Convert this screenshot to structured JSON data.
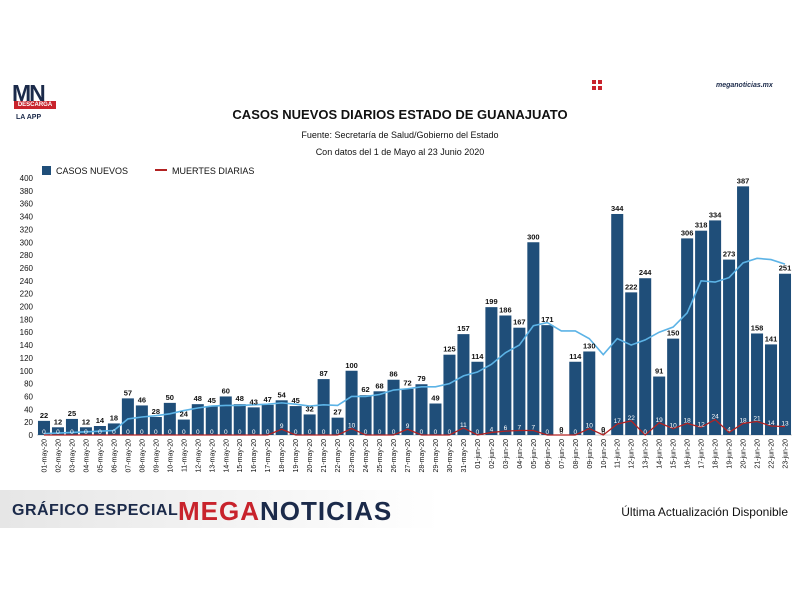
{
  "brand": {
    "logo_text": "MN",
    "logo_badge": "DESCARGA",
    "logo_sub": "LA APP",
    "site": "meganoticias.mx"
  },
  "footer": {
    "left_label": "GRÁFICO ESPECIAL",
    "brand_a": "MEGA",
    "brand_b": "NOTICIAS",
    "right_label": "Última Actualización Disponible"
  },
  "colors": {
    "bars": "#1f4e79",
    "deaths": "#b22222",
    "trend": "#5cb3e6",
    "label_light": "#ffffff",
    "label_dark": "#111111"
  },
  "chart_data": {
    "type": "bar",
    "title": "CASOS NUEVOS DIARIOS ESTADO DE GUANAJUATO",
    "subtitle": "Fuente: Secretaría de Salud/Gobierno del Estado",
    "subtitle2": "Con datos del 1 de Mayo al 23 Junio 2020",
    "ylim": [
      0,
      400
    ],
    "yticks": [
      0,
      20,
      40,
      60,
      80,
      100,
      120,
      140,
      160,
      180,
      200,
      220,
      240,
      260,
      280,
      300,
      320,
      340,
      360,
      380,
      400
    ],
    "legend": [
      "CASOS NUEVOS",
      "MUERTES DIARIAS"
    ],
    "legend_position": "top-left",
    "grid": false,
    "categories": [
      "01-may-20",
      "02-may-20",
      "03-may-20",
      "04-may-20",
      "05-may-20",
      "06-may-20",
      "07-may-20",
      "08-may-20",
      "09-may-20",
      "10-may-20",
      "11-may-20",
      "12-may-20",
      "13-may-20",
      "14-may-20",
      "15-may-20",
      "16-may-20",
      "17-may-20",
      "18-may-20",
      "19-may-20",
      "20-may-20",
      "21-may-20",
      "22-may-20",
      "23-may-20",
      "24-may-20",
      "25-may-20",
      "26-may-20",
      "27-may-20",
      "28-may-20",
      "29-may-20",
      "30-may-20",
      "31-may-20",
      "01-jun-20",
      "02-jun-20",
      "03-jun-20",
      "04-jun-20",
      "05-jun-20",
      "06-jun-20",
      "07-jun-20",
      "08-jun-20",
      "09-jun-20",
      "10-jun-20",
      "11-jun-20",
      "12-jun-20",
      "13-jun-20",
      "14-jun-20",
      "15-jun-20",
      "16-jun-20",
      "17-jun-20",
      "18-jun-20",
      "19-jun-20",
      "20-jun-20",
      "21-jun-20",
      "22-jun-20",
      "23-jun-20"
    ],
    "series": [
      {
        "name": "CASOS NUEVOS",
        "values": [
          22,
          12,
          25,
          12,
          14,
          18,
          57,
          46,
          28,
          50,
          24,
          48,
          45,
          60,
          48,
          43,
          47,
          54,
          45,
          32,
          87,
          27,
          100,
          62,
          68,
          86,
          72,
          79,
          49,
          125,
          157,
          114,
          199,
          186,
          167,
          300,
          171,
          0,
          114,
          130,
          0,
          344,
          222,
          244,
          91,
          150,
          306,
          318,
          334,
          273,
          387,
          158,
          141,
          251
        ]
      },
      {
        "name": "MUERTES DIARIAS",
        "values": [
          0,
          0,
          0,
          0,
          0,
          0,
          0,
          0,
          0,
          0,
          0,
          0,
          0,
          0,
          0,
          0,
          0,
          9,
          0,
          0,
          0,
          0,
          10,
          0,
          0,
          0,
          9,
          0,
          0,
          0,
          11,
          0,
          4,
          6,
          7,
          7,
          0,
          0,
          0,
          10,
          0,
          17,
          22,
          0,
          19,
          10,
          18,
          12,
          24,
          4,
          18,
          21,
          14,
          13
        ]
      }
    ],
    "trend_line": [
      2,
      3,
      4,
      5,
      6,
      7,
      25,
      28,
      30,
      33,
      38,
      42,
      45,
      46,
      46,
      47,
      48,
      50,
      48,
      45,
      47,
      46,
      60,
      60,
      63,
      70,
      72,
      75,
      75,
      80,
      92,
      98,
      110,
      128,
      140,
      170,
      175,
      162,
      162,
      150,
      125,
      150,
      140,
      148,
      160,
      168,
      190,
      240,
      238,
      245,
      268,
      275,
      273,
      266
    ]
  }
}
